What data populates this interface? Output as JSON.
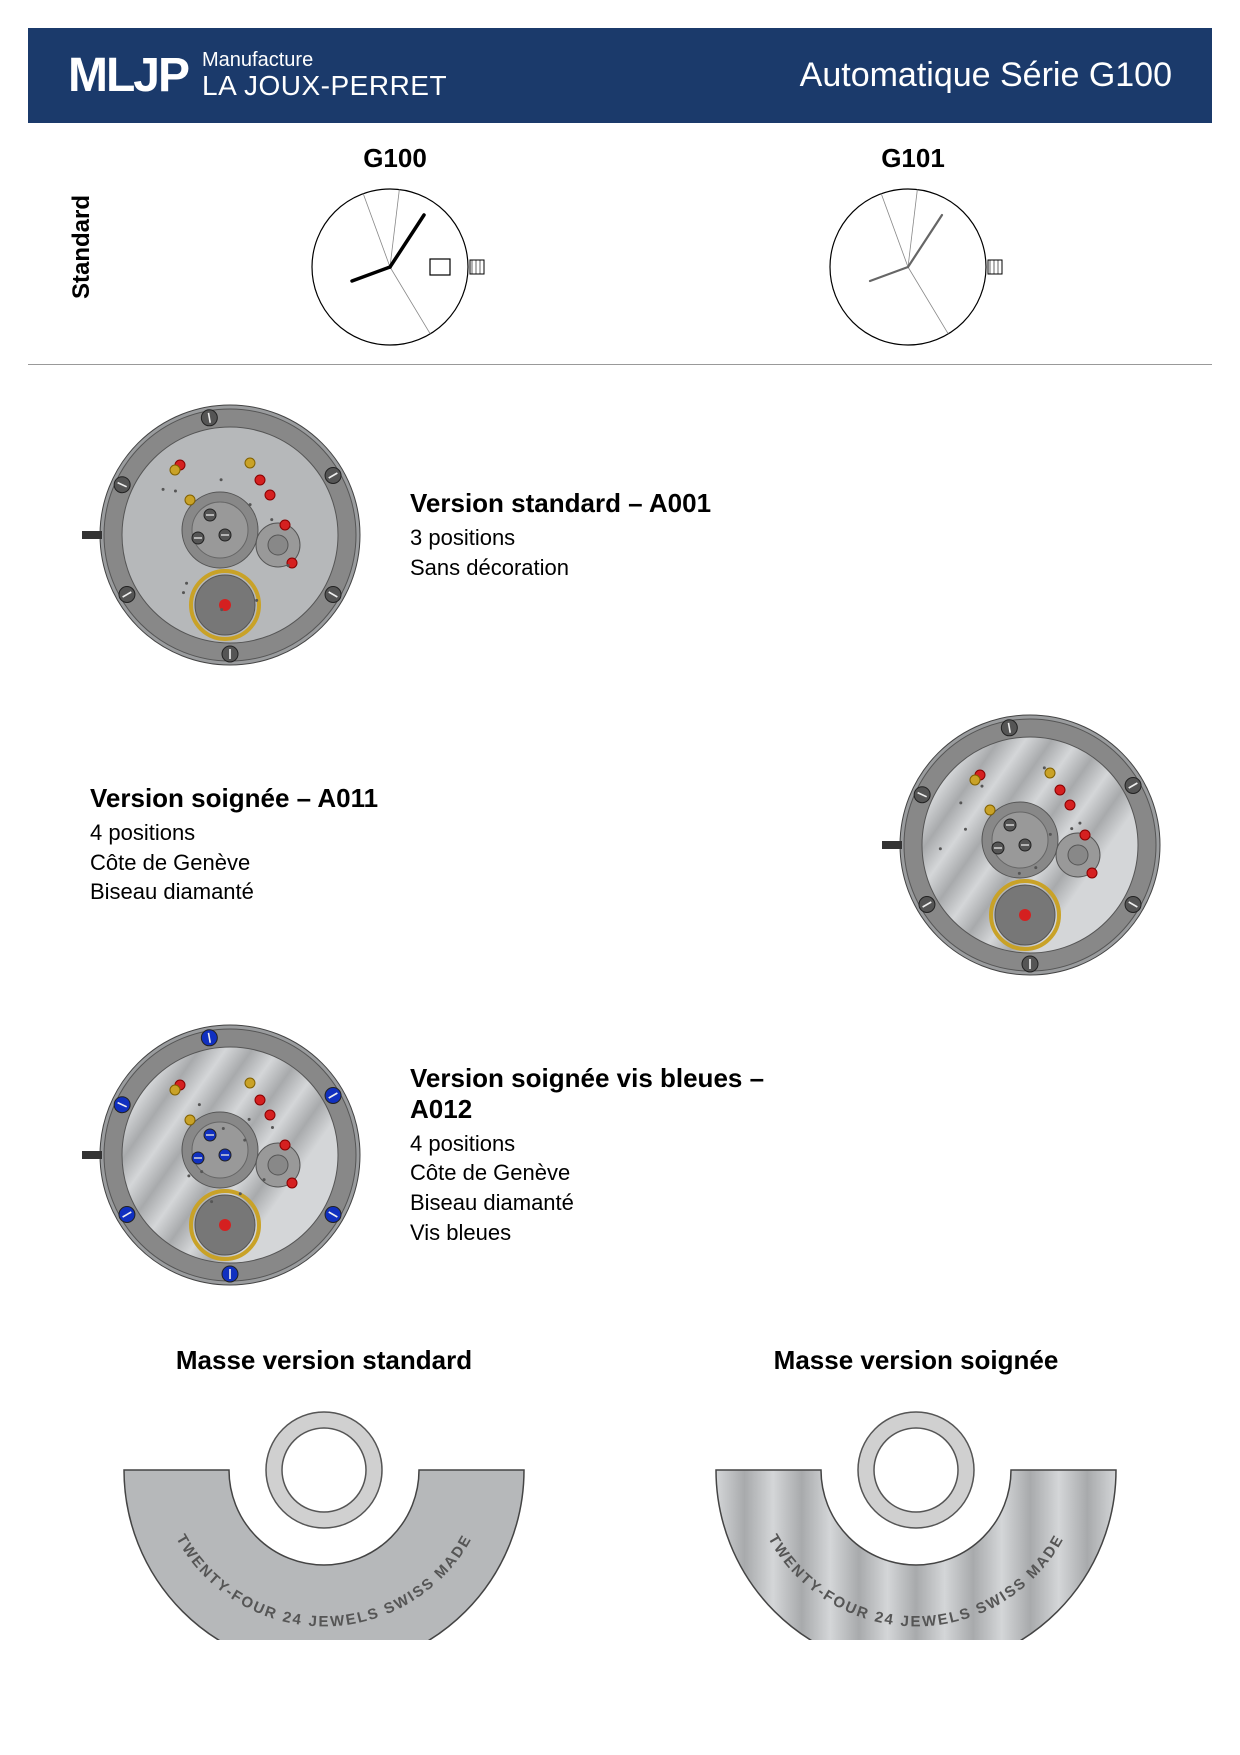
{
  "header": {
    "logo_mark": "MLJP",
    "logo_line1": "Manufacture",
    "logo_line2": "LA JOUX-PERRET",
    "title": "Automatique Série G100",
    "bg_color": "#1b3a6b",
    "text_color": "#ffffff"
  },
  "dial_section": {
    "side_label": "Standard",
    "dials": [
      {
        "name": "G100",
        "has_date": true,
        "hand_weight": 3.5,
        "hand_color": "#000000"
      },
      {
        "name": "G101",
        "has_date": false,
        "hand_weight": 2.2,
        "hand_color": "#666666"
      }
    ]
  },
  "versions": [
    {
      "title": "Version standard – A001",
      "lines": [
        "3 positions",
        "Sans décoration"
      ],
      "stripes": false,
      "screw_color": "#555555",
      "layout": "img-left"
    },
    {
      "title": "Version soignée – A011",
      "lines": [
        "4 positions",
        "Côte de Genève",
        "Biseau diamanté"
      ],
      "stripes": true,
      "screw_color": "#555555",
      "layout": "txt-left"
    },
    {
      "title": "Version soignée vis bleues – A012",
      "lines": [
        "4 positions",
        "Côte de Genève",
        "Biseau diamanté",
        "Vis bleues"
      ],
      "stripes": true,
      "screw_color": "#1030c0",
      "layout": "img-left"
    }
  ],
  "rotors": [
    {
      "title": "Masse version standard",
      "stripes": false,
      "engraving": "TWENTY-FOUR 24 JEWELS SWISS MADE"
    },
    {
      "title": "Masse version soignée",
      "stripes": true,
      "engraving": "TWENTY-FOUR 24 JEWELS SWISS MADE"
    }
  ],
  "colors": {
    "movement_base": "#b6b8ba",
    "movement_rim": "#9a9c9e",
    "stripe_light": "#d4d6d8",
    "stripe_dark": "#a8aaac",
    "jewel_red": "#d52020",
    "gold": "#c9a227",
    "steel_dark": "#5a5c5e"
  }
}
